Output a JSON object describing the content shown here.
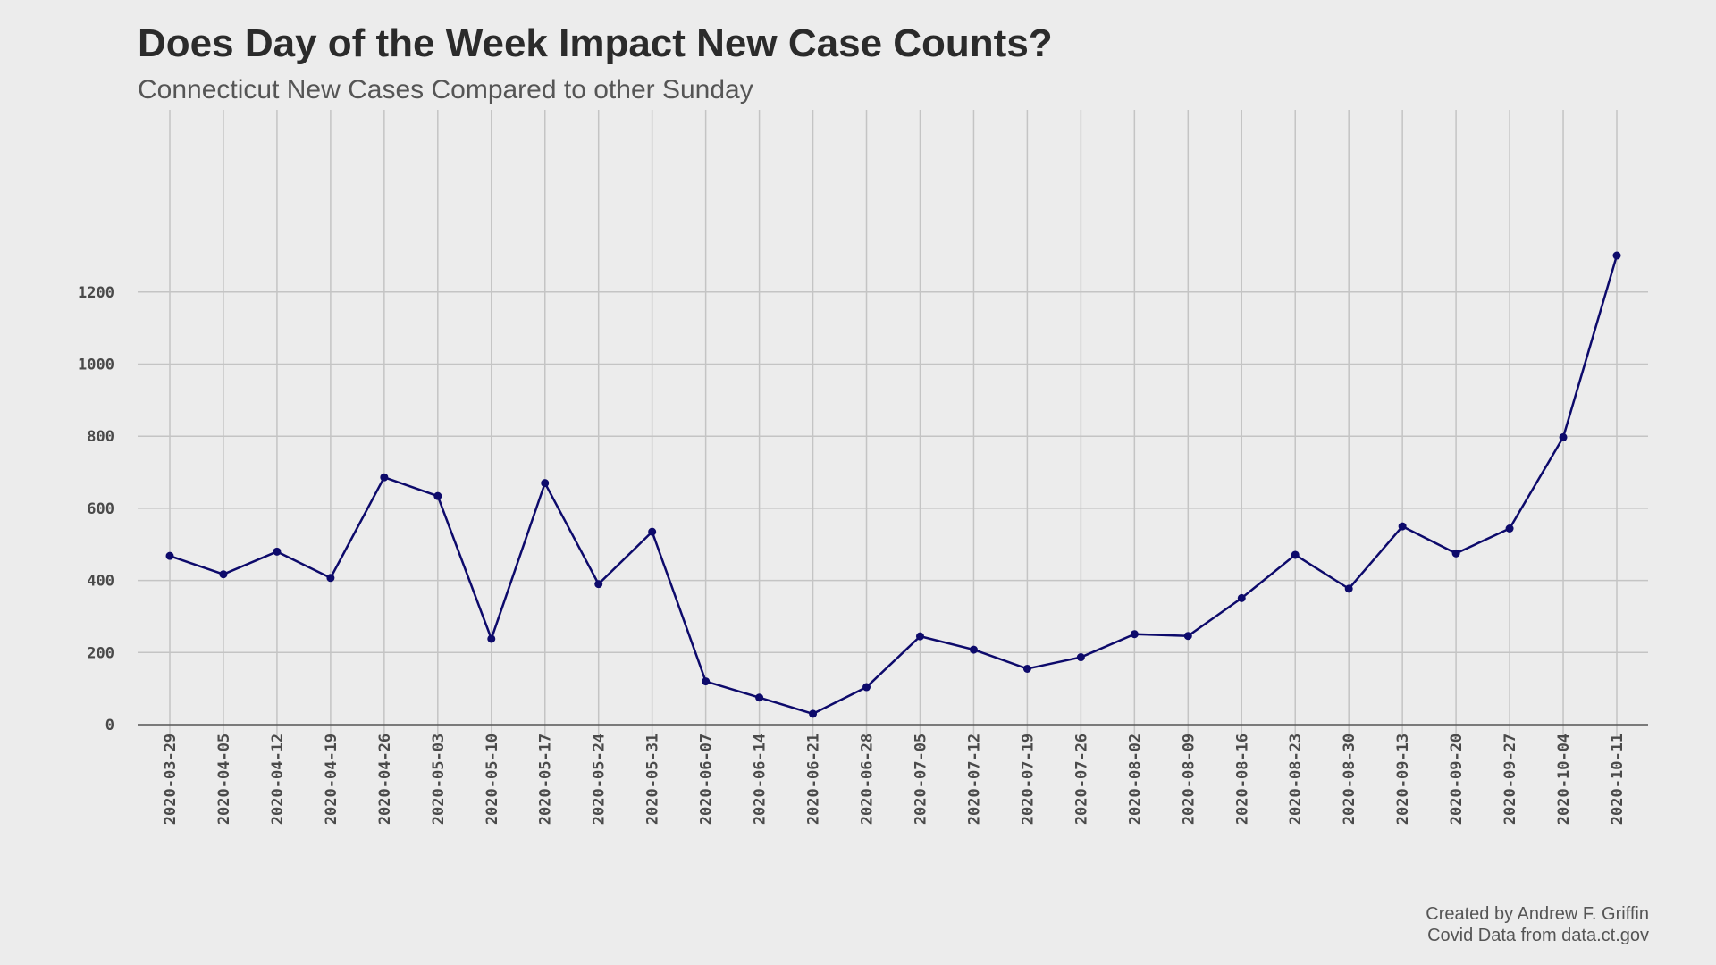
{
  "chart_data": {
    "type": "line",
    "title": "Does Day of the Week Impact New Case Counts?",
    "subtitle": "Connecticut New Cases Compared to other Sunday",
    "xlabel": "",
    "ylabel": "",
    "ylim": [
      0,
      1300
    ],
    "yticks": [
      "0",
      "200",
      "400",
      "600",
      "800",
      "1000",
      "1200"
    ],
    "grid": true,
    "line_color": "#0d0a6b",
    "categories": [
      "2020-03-29",
      "2020-04-05",
      "2020-04-12",
      "2020-04-19",
      "2020-04-26",
      "2020-05-03",
      "2020-05-10",
      "2020-05-17",
      "2020-05-24",
      "2020-05-31",
      "2020-06-07",
      "2020-06-14",
      "2020-06-21",
      "2020-06-28",
      "2020-07-05",
      "2020-07-12",
      "2020-07-19",
      "2020-07-26",
      "2020-08-02",
      "2020-08-09",
      "2020-08-16",
      "2020-08-23",
      "2020-08-30",
      "2020-09-13",
      "2020-09-20",
      "2020-09-27",
      "2020-10-04",
      "2020-10-11"
    ],
    "values": [
      468,
      417,
      480,
      407,
      686,
      634,
      238,
      670,
      390,
      535,
      120,
      75,
      30,
      104,
      245,
      208,
      155,
      187,
      251,
      246,
      351,
      471,
      377,
      550,
      475,
      544,
      797,
      1301
    ],
    "caption_lines": [
      "Created by Andrew F. Griffin",
      "Covid Data from data.ct.gov"
    ]
  }
}
